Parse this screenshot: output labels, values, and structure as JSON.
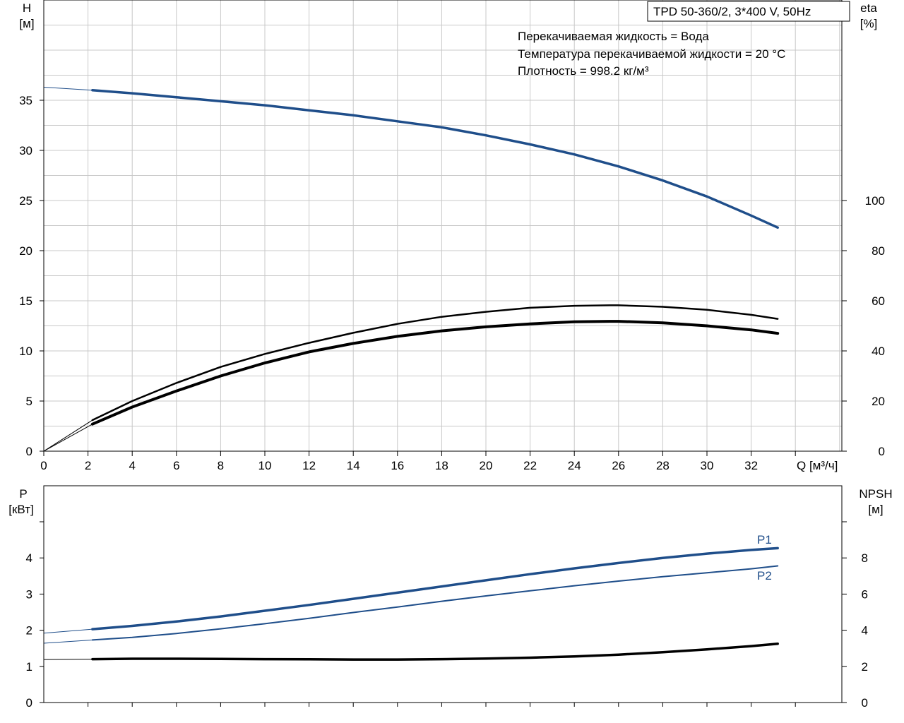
{
  "header": {
    "model_label": "TPD 50-360/2, 3*400 V, 50Hz",
    "info_lines": [
      "Перекачиваемая жидкость = Вода",
      "Температура перекачиваемой жидкости = 20 °C",
      "Плотность = 998.2 кг/м³"
    ]
  },
  "colors": {
    "blue": "#1f4e8a",
    "black": "#000000",
    "grid": "#c8c8c8"
  },
  "chart_data": [
    {
      "type": "line",
      "panel": "head_efficiency",
      "x_axis": {
        "label": "Q [м³/ч]",
        "min": 0,
        "max": 36,
        "ticks": [
          "0",
          "2",
          "4",
          "6",
          "8",
          "10",
          "12",
          "14",
          "16",
          "18",
          "20",
          "22",
          "24",
          "26",
          "28",
          "30",
          "32"
        ]
      },
      "y_left": {
        "label_line1": "H",
        "label_line2": "[м]",
        "min": 0,
        "max": 45,
        "ticks": [
          "0",
          "5",
          "10",
          "15",
          "20",
          "25",
          "30",
          "35"
        ]
      },
      "y_right": {
        "label_line1": "eta",
        "label_line2": "[%]",
        "min": 0,
        "max": 180,
        "ticks": [
          "0",
          "20",
          "40",
          "60",
          "80",
          "100"
        ]
      },
      "grid": true,
      "series": [
        {
          "id": "head",
          "axis": "left",
          "color": "#1f4e8a",
          "points": [
            [
              0,
              36.3
            ],
            [
              2.2,
              36.0
            ],
            [
              4,
              35.7
            ],
            [
              6,
              35.3
            ],
            [
              8,
              34.9
            ],
            [
              10,
              34.5
            ],
            [
              12,
              34.0
            ],
            [
              14,
              33.5
            ],
            [
              16,
              32.9
            ],
            [
              18,
              32.3
            ],
            [
              20,
              31.5
            ],
            [
              22,
              30.6
            ],
            [
              24,
              29.6
            ],
            [
              26,
              28.4
            ],
            [
              28,
              27.0
            ],
            [
              30,
              25.4
            ],
            [
              32,
              23.5
            ],
            [
              33.2,
              22.3
            ]
          ]
        },
        {
          "id": "eta_pump",
          "axis": "right",
          "color": "#000000",
          "points": [
            [
              0,
              0
            ],
            [
              2.2,
              12.4
            ],
            [
              4,
              20.0
            ],
            [
              6,
              27.2
            ],
            [
              8,
              33.6
            ],
            [
              10,
              38.8
            ],
            [
              12,
              43.2
            ],
            [
              14,
              47.2
            ],
            [
              16,
              50.8
            ],
            [
              18,
              53.6
            ],
            [
              20,
              55.6
            ],
            [
              22,
              57.2
            ],
            [
              24,
              58.0
            ],
            [
              25.6,
              58.2
            ],
            [
              26,
              58.2
            ],
            [
              28,
              57.6
            ],
            [
              30,
              56.4
            ],
            [
              32,
              54.4
            ],
            [
              33.2,
              52.8
            ]
          ]
        },
        {
          "id": "eta_total",
          "axis": "right",
          "color": "#000000",
          "points": [
            [
              0,
              0
            ],
            [
              2.2,
              10.8
            ],
            [
              4,
              17.6
            ],
            [
              6,
              24.0
            ],
            [
              8,
              30.0
            ],
            [
              10,
              35.2
            ],
            [
              12,
              39.6
            ],
            [
              14,
              43.0
            ],
            [
              16,
              45.8
            ],
            [
              18,
              48.0
            ],
            [
              20,
              49.6
            ],
            [
              22,
              50.8
            ],
            [
              24,
              51.6
            ],
            [
              25.6,
              51.8
            ],
            [
              26,
              51.8
            ],
            [
              28,
              51.2
            ],
            [
              30,
              50.0
            ],
            [
              32,
              48.4
            ],
            [
              33.2,
              47.0
            ]
          ]
        }
      ]
    },
    {
      "type": "line",
      "panel": "power_npsh",
      "x_axis": {
        "min": 0,
        "max": 36
      },
      "y_left": {
        "label_line1": "P",
        "label_line2": "[кВт]",
        "min": 0,
        "max": 6,
        "ticks": [
          "0",
          "1",
          "2",
          "3",
          "4"
        ]
      },
      "y_right": {
        "label_line1": "NPSH",
        "label_line2": "[м]",
        "min": 0,
        "max": 12,
        "ticks": [
          "0",
          "2",
          "4",
          "6",
          "8"
        ]
      },
      "grid": false,
      "series": [
        {
          "id": "P1",
          "name": "P1",
          "axis": "left",
          "color": "#1f4e8a",
          "points": [
            [
              0,
              1.92
            ],
            [
              2.2,
              2.03
            ],
            [
              4,
              2.12
            ],
            [
              6,
              2.24
            ],
            [
              8,
              2.38
            ],
            [
              10,
              2.54
            ],
            [
              12,
              2.7
            ],
            [
              14,
              2.87
            ],
            [
              16,
              3.04
            ],
            [
              18,
              3.21
            ],
            [
              20,
              3.38
            ],
            [
              22,
              3.55
            ],
            [
              24,
              3.71
            ],
            [
              26,
              3.86
            ],
            [
              28,
              4.0
            ],
            [
              30,
              4.12
            ],
            [
              32,
              4.22
            ],
            [
              33.2,
              4.27
            ]
          ]
        },
        {
          "id": "P2",
          "name": "P2",
          "axis": "left",
          "color": "#1f4e8a",
          "points": [
            [
              0,
              1.64
            ],
            [
              2.2,
              1.73
            ],
            [
              4,
              1.8
            ],
            [
              6,
              1.91
            ],
            [
              8,
              2.04
            ],
            [
              10,
              2.18
            ],
            [
              12,
              2.33
            ],
            [
              14,
              2.49
            ],
            [
              16,
              2.64
            ],
            [
              18,
              2.8
            ],
            [
              20,
              2.95
            ],
            [
              22,
              3.09
            ],
            [
              24,
              3.23
            ],
            [
              26,
              3.36
            ],
            [
              28,
              3.48
            ],
            [
              30,
              3.59
            ],
            [
              32,
              3.7
            ],
            [
              33.2,
              3.78
            ]
          ]
        },
        {
          "id": "npsh",
          "axis": "right",
          "color": "#000000",
          "points": [
            [
              0,
              2.38
            ],
            [
              2.2,
              2.4
            ],
            [
              4,
              2.42
            ],
            [
              6,
              2.42
            ],
            [
              8,
              2.41
            ],
            [
              10,
              2.4
            ],
            [
              12,
              2.39
            ],
            [
              14,
              2.38
            ],
            [
              16,
              2.38
            ],
            [
              18,
              2.4
            ],
            [
              20,
              2.43
            ],
            [
              22,
              2.48
            ],
            [
              24,
              2.55
            ],
            [
              26,
              2.65
            ],
            [
              28,
              2.78
            ],
            [
              30,
              2.94
            ],
            [
              32,
              3.12
            ],
            [
              33.2,
              3.25
            ]
          ]
        }
      ]
    }
  ]
}
